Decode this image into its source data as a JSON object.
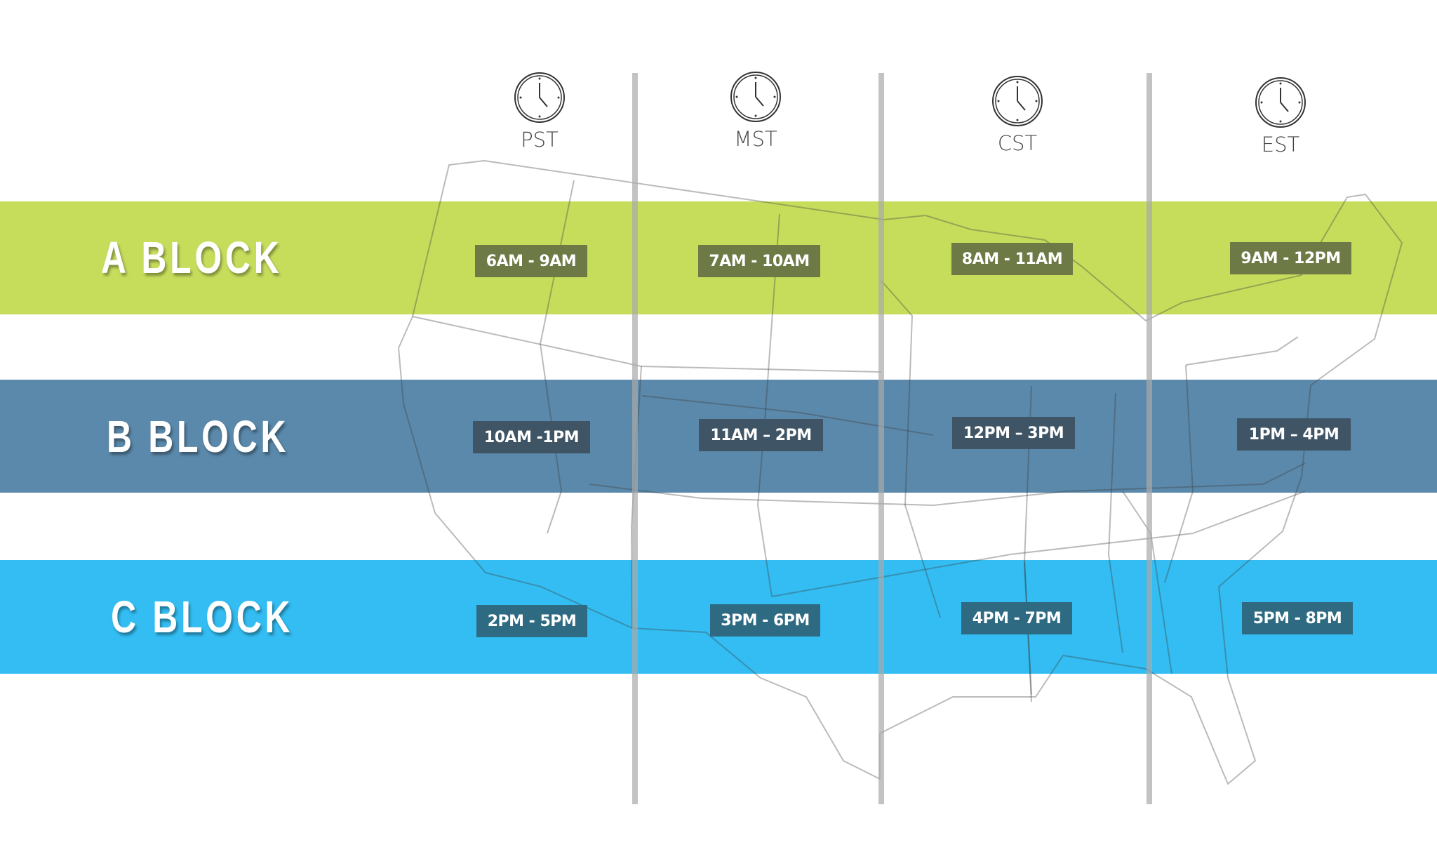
{
  "colors": {
    "a_block": "#c6dd5c",
    "b_block": "#5b89ab",
    "c_block": "#33bdf2",
    "a_box": "#6e7a45",
    "b_box": "#3f5566",
    "c_box": "#2e6a82",
    "divider": "#a9a9a9"
  },
  "time_zones": [
    {
      "label": "PST",
      "icon": "clock-icon"
    },
    {
      "label": "MST",
      "icon": "clock-icon"
    },
    {
      "label": "CST",
      "icon": "clock-icon"
    },
    {
      "label": "EST",
      "icon": "clock-icon"
    }
  ],
  "blocks": [
    {
      "label": "A BLOCK",
      "times": [
        "6AM - 9AM",
        "7AM - 10AM",
        "8AM - 11AM",
        "9AM - 12PM"
      ]
    },
    {
      "label": "B BLOCK",
      "times": [
        "10AM -1PM",
        "11AM – 2PM",
        "12PM – 3PM",
        "1PM – 4PM"
      ]
    },
    {
      "label": "C BLOCK",
      "times": [
        "2PM - 5PM",
        "3PM - 6PM",
        "4PM - 7PM",
        "5PM - 8PM"
      ]
    }
  ]
}
